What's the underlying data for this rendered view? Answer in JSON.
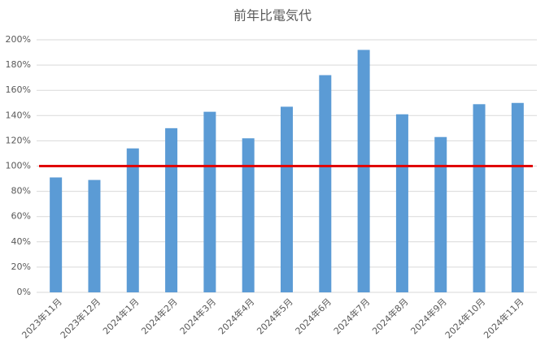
{
  "chart_data": {
    "type": "bar",
    "title": "前年比電気代",
    "categories": [
      "2023年11月",
      "2023年12月",
      "2024年1月",
      "2024年2月",
      "2024年3月",
      "2024年4月",
      "2024年5月",
      "2024年6月",
      "2024年7月",
      "2024年8月",
      "2024年9月",
      "2024年10月",
      "2024年11月"
    ],
    "values": [
      91,
      89,
      114,
      130,
      143,
      122,
      147,
      172,
      192,
      141,
      123,
      149,
      150
    ],
    "color": "#5b9bd5",
    "ylim": [
      0,
      200
    ],
    "yticks": [
      {
        "value": 0,
        "label": "0%"
      },
      {
        "value": 20,
        "label": "20%"
      },
      {
        "value": 40,
        "label": "40%"
      },
      {
        "value": 60,
        "label": "60%"
      },
      {
        "value": 80,
        "label": "80%"
      },
      {
        "value": 100,
        "label": "100%"
      },
      {
        "value": 120,
        "label": "120%"
      },
      {
        "value": 140,
        "label": "140%"
      },
      {
        "value": 160,
        "label": "160%"
      },
      {
        "value": 180,
        "label": "180%"
      },
      {
        "value": 200,
        "label": "200%"
      }
    ],
    "grid": true,
    "reference_line": {
      "value": 100,
      "color": "#e00000"
    }
  }
}
